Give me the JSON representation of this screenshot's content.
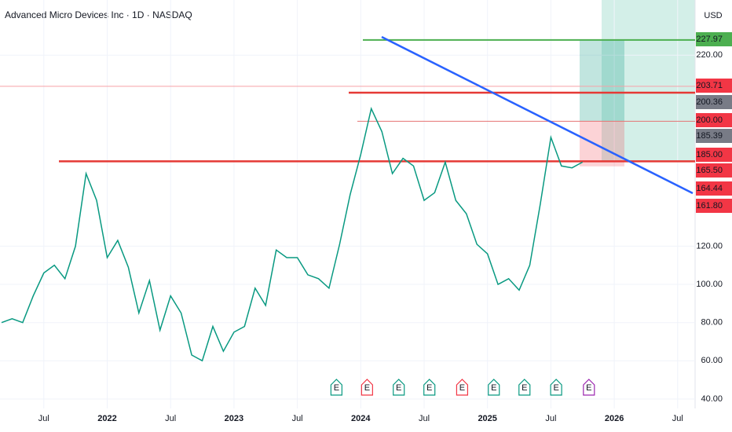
{
  "title": "Advanced Micro Devices Inc · 1D · NASDAQ",
  "currency": "USD",
  "chart_data": {
    "type": "line",
    "xlim": [
      2,
      67.8
    ],
    "ylim": [
      33,
      246
    ],
    "xticks": [
      {
        "value": 6,
        "label": "Jul"
      },
      {
        "value": 12,
        "label": "2022"
      },
      {
        "value": 18,
        "label": "Jul"
      },
      {
        "value": 24,
        "label": "2023"
      },
      {
        "value": 30,
        "label": "Jul"
      },
      {
        "value": 36,
        "label": "2024"
      },
      {
        "value": 42,
        "label": "Jul"
      },
      {
        "value": 48,
        "label": "2025"
      },
      {
        "value": 54,
        "label": "Jul"
      },
      {
        "value": 60,
        "label": "2026"
      },
      {
        "value": 66,
        "label": "Jul"
      }
    ],
    "yticks": [
      {
        "value": 40,
        "label": "40.00"
      },
      {
        "value": 60,
        "label": "60.00"
      },
      {
        "value": 80,
        "label": "80.00"
      },
      {
        "value": 100,
        "label": "100.00"
      },
      {
        "value": 120,
        "label": "120.00"
      },
      {
        "value": 220,
        "label": "220.00"
      }
    ],
    "grid": true,
    "series": [
      {
        "color": "#089981",
        "x": [
          2,
          3,
          4,
          5,
          6,
          7,
          8,
          9,
          10,
          11,
          12,
          13,
          14,
          15,
          16,
          17,
          18,
          19,
          20,
          21,
          22,
          23,
          24,
          25,
          26,
          27,
          28,
          29,
          30,
          31,
          32,
          33,
          34,
          35,
          36,
          37,
          38,
          39,
          40,
          41,
          42,
          43,
          44,
          45,
          46,
          47,
          48,
          49,
          50,
          51,
          52,
          53,
          54,
          55,
          56,
          57
        ],
        "values": [
          80,
          82,
          80,
          94,
          106,
          110,
          103,
          120,
          158,
          144,
          114,
          123,
          109,
          85,
          102,
          76,
          94,
          85,
          63,
          60,
          78,
          65,
          75,
          78,
          98,
          89,
          118,
          114,
          114,
          105,
          103,
          98,
          121,
          147,
          168,
          192,
          180,
          158,
          166,
          162,
          144,
          148,
          164,
          144,
          137,
          121,
          116,
          100,
          103,
          97,
          110,
          142,
          177,
          162,
          161,
          164
        ]
      }
    ],
    "levels": [
      {
        "value": 227.97,
        "color": "#4caf50"
      },
      {
        "value": 203.71,
        "color": "#f7a1a8"
      },
      {
        "value": 200.36,
        "color": "#e53935"
      },
      {
        "value": 185.39,
        "color": "#e57373"
      },
      {
        "value": 164.44,
        "color": "#e53935"
      }
    ],
    "position": {
      "target": 227.97,
      "entry": 185.39,
      "stop": 161.8
    },
    "price_tags": [
      {
        "value": 227.97,
        "label": "227.97",
        "color": "#4caf50"
      },
      {
        "value": 203.71,
        "label": "203.71",
        "color": "#f23645"
      },
      {
        "value": 200.36,
        "label": "200.36",
        "color": "#787b86"
      },
      {
        "value": 200,
        "label": "200.00",
        "color": "#f23645"
      },
      {
        "value": 185.39,
        "label": "185.39",
        "color": "#787b86"
      },
      {
        "value": 185,
        "label": "185.00",
        "color": "#f23645"
      },
      {
        "value": 165.5,
        "label": "165.50",
        "color": "#f23645"
      },
      {
        "value": 164.44,
        "label": "164.44",
        "color": "#f23645"
      },
      {
        "value": 161.8,
        "label": "161.80",
        "color": "#f23645"
      }
    ],
    "events": [
      {
        "x": 33.7,
        "label": "E",
        "color": "#089981"
      },
      {
        "x": 36.6,
        "label": "E",
        "color": "#f23645"
      },
      {
        "x": 39.6,
        "label": "E",
        "color": "#089981"
      },
      {
        "x": 42.5,
        "label": "E",
        "color": "#089981"
      },
      {
        "x": 45.6,
        "label": "E",
        "color": "#f23645"
      },
      {
        "x": 48.6,
        "label": "E",
        "color": "#089981"
      },
      {
        "x": 51.5,
        "label": "E",
        "color": "#089981"
      },
      {
        "x": 54.5,
        "label": "E",
        "color": "#089981"
      },
      {
        "x": 57.6,
        "label": "E",
        "color": "#9c27b0"
      }
    ]
  }
}
